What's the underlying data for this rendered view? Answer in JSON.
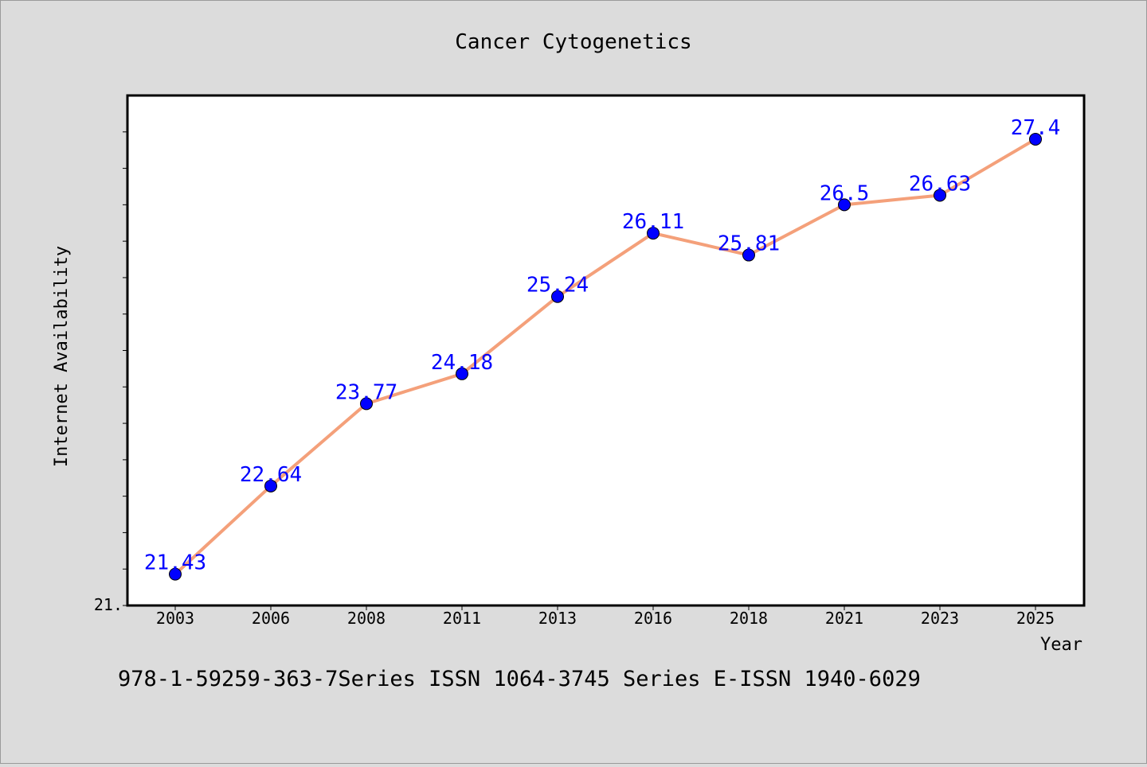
{
  "chart_data": {
    "type": "line",
    "title": "Cancer Cytogenetics",
    "xlabel": "Year",
    "ylabel": "Internet Availability",
    "categories": [
      "2003",
      "2006",
      "2008",
      "2011",
      "2013",
      "2016",
      "2018",
      "2021",
      "2023",
      "2025"
    ],
    "series": [
      {
        "values": [
          21.43,
          22.64,
          23.77,
          24.18,
          25.24,
          26.11,
          25.81,
          26.5,
          26.63,
          27.4
        ],
        "line_color": "#f4a07a",
        "marker_color": "#0000ff"
      }
    ],
    "data_labels": [
      "21.43",
      "22.64",
      "23.77",
      "24.18",
      "25.24",
      "26.11",
      "25.81",
      "26.5",
      "26.63",
      "27.4"
    ],
    "y_tick_label": "21.",
    "ylim": [
      21.0,
      28.0
    ],
    "grid": false,
    "legend": "none"
  },
  "footer_text": "978-1-59259-363-7Series ISSN 1064-3745 Series E-ISSN 1940-6029",
  "colors": {
    "background": "#dcdcdc",
    "plot_background": "#ffffff",
    "line": "#f4a07a",
    "marker": "#0000ff",
    "label": "#0000ff"
  }
}
